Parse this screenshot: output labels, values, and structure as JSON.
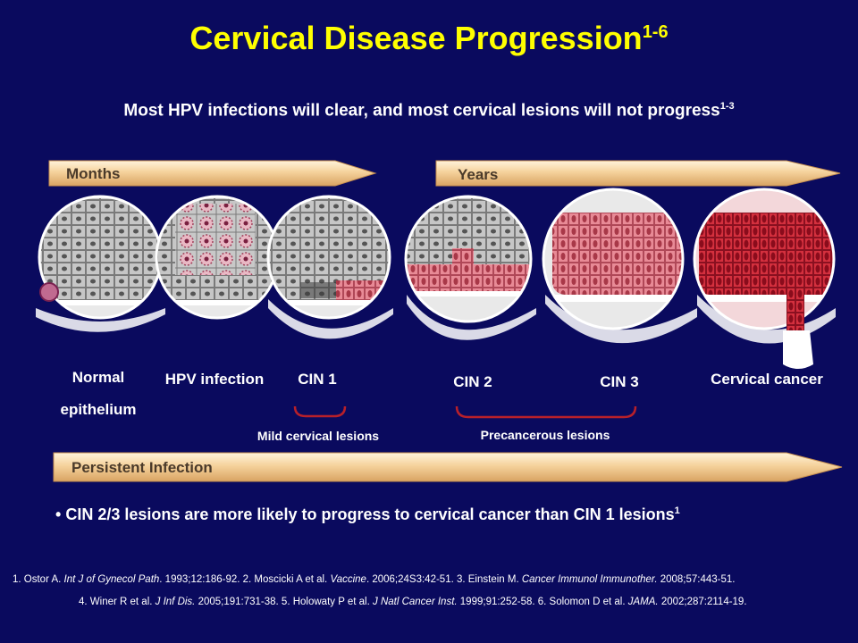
{
  "title": "Cervical Disease Progression",
  "title_sup": "1-6",
  "subtitle": "Most HPV infections will  clear, and most cervical lesions will  not progress",
  "subtitle_sup": "1-3",
  "arrows": {
    "months": "Months",
    "years": "Years",
    "persistent": "Persistent Infection"
  },
  "stages": {
    "normal_line1": "Normal",
    "normal_line2": "epithelium",
    "hpv": "HPV infection",
    "cin1": "CIN 1",
    "cin2": "CIN 2",
    "cin3": "CIN 3",
    "cancer": "Cervical cancer"
  },
  "groups": {
    "mild": "Mild cervical lesions",
    "precancerous": "Precancerous lesions"
  },
  "bullet": {
    "marker": "•",
    "text": "CIN  2/3 lesions  are more likely  to progress to cervical cancer than CIN  1 lesions",
    "sup": "1"
  },
  "references": {
    "r1_a": "1. Ostor A. ",
    "r1_j": "Int J of Gynecol Path",
    "r1_b": ". 1993;12:186-92.   2. Moscicki A et al. ",
    "r2_j": "Vaccine",
    "r2_b": ". 2006;24S3:42-51.   3. Einstein M. ",
    "r3_j": "Cancer Immunol Immunother.",
    "r3_b": " 2008;57:443-51.",
    "r4_a": "4. Winer R et al. ",
    "r4_j": "J Inf Dis.",
    "r4_b": " 2005;191:731-38.   5. Holowaty P et al. ",
    "r5_j": "J Natl Cancer Inst.",
    "r5_b": " 1999;91:252-58.   6. Solomon D et al. ",
    "r6_j": "JAMA.",
    "r6_b": " 2002;287:2114-19."
  },
  "colors": {
    "background": "#0a0a5e",
    "title": "#ffff00",
    "arrow_fill": "#f7d9a8",
    "bracket": "#b8202a",
    "normal_cell": "#c8c8c8",
    "lesion_cell": "#e88a96",
    "cancer_cell": "#c8202e"
  }
}
